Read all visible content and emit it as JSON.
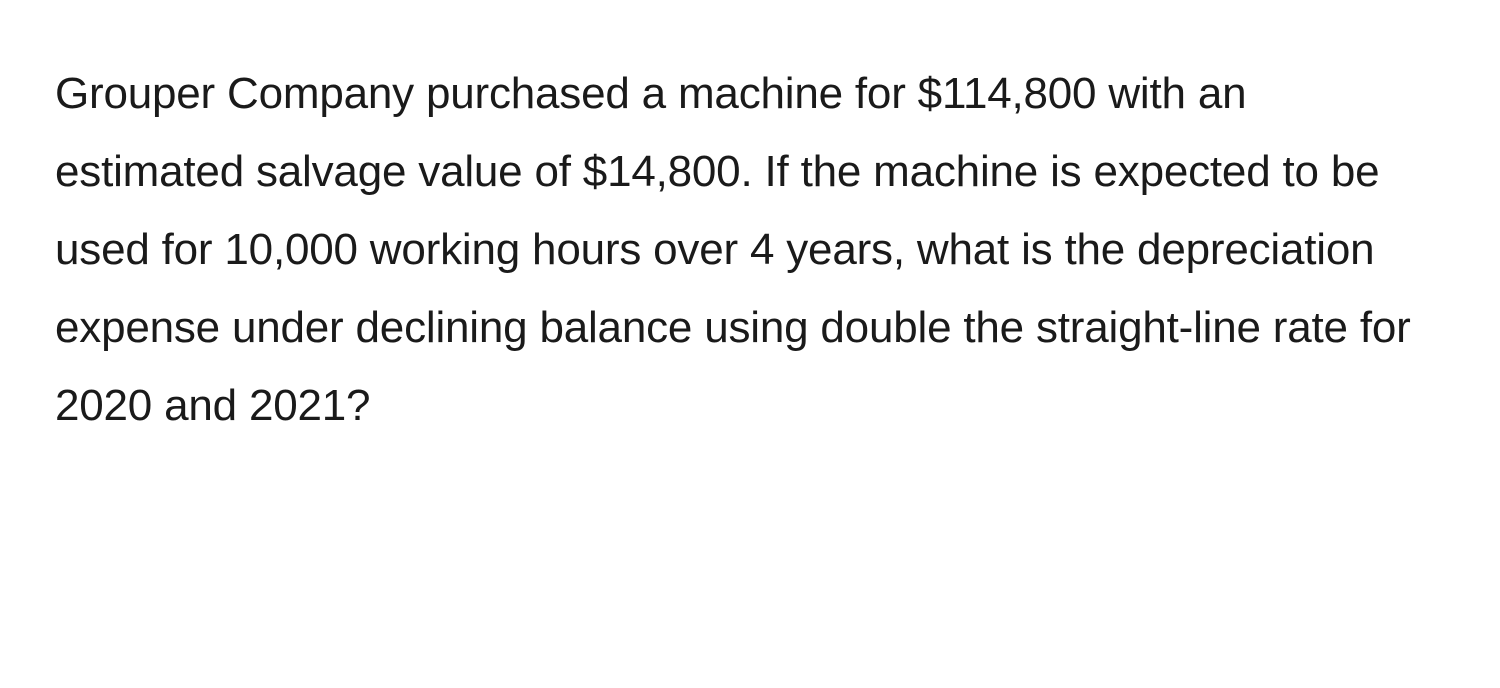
{
  "problem": {
    "text": "Grouper Company purchased a machine for $114,800 with an estimated salvage value of $14,800. If the machine is expected to be used for 10,000 working hours over 4 years, what is the depreciation expense under declining balance using double the straight-line rate for 2020 and 2021?",
    "font_size": 44,
    "line_height": 1.77,
    "text_color": "#1a1a1a",
    "background_color": "#ffffff",
    "font_weight": 400
  }
}
